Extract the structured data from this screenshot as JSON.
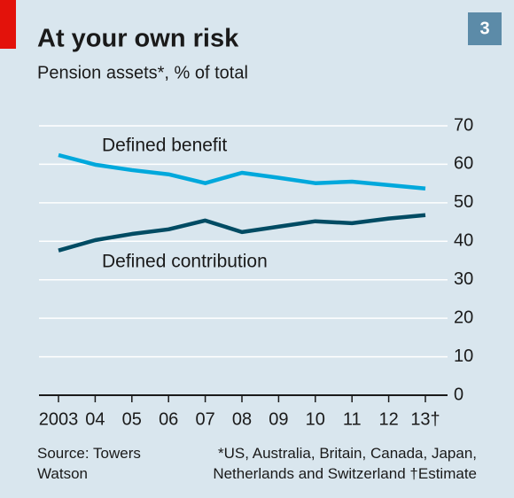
{
  "chart_data": {
    "type": "line",
    "title": "At your own risk",
    "subtitle": "Pension assets*, % of total",
    "badge": "3",
    "x": [
      2003,
      2004,
      2005,
      2006,
      2007,
      2008,
      2009,
      2010,
      2011,
      2012,
      2013
    ],
    "xlim": [
      2003,
      2013
    ],
    "xticks": [
      {
        "value": 2003,
        "label": "2003"
      },
      {
        "value": 2004,
        "label": "04"
      },
      {
        "value": 2005,
        "label": "05"
      },
      {
        "value": 2006,
        "label": "06"
      },
      {
        "value": 2007,
        "label": "07"
      },
      {
        "value": 2008,
        "label": "08"
      },
      {
        "value": 2009,
        "label": "09"
      },
      {
        "value": 2010,
        "label": "10"
      },
      {
        "value": 2011,
        "label": "11"
      },
      {
        "value": 2012,
        "label": "12"
      },
      {
        "value": 2013,
        "label": "13†"
      }
    ],
    "ylim": [
      0,
      70
    ],
    "yticks": [
      0,
      10,
      20,
      30,
      40,
      50,
      60,
      70
    ],
    "grid": true,
    "series": [
      {
        "name": "Defined benefit",
        "color": "#00a8dc",
        "values": [
          62.4,
          59.9,
          58.5,
          57.4,
          55.1,
          57.8,
          56.5,
          55.1,
          55.5,
          54.6,
          53.7
        ]
      },
      {
        "name": "Defined contribution",
        "color": "#004b63",
        "values": [
          37.6,
          40.3,
          41.9,
          43.1,
          45.4,
          42.4,
          43.8,
          45.2,
          44.7,
          45.9,
          46.8
        ]
      }
    ],
    "source": "Source: Towers Watson",
    "note": "*US, Australia, Britain, Canada, Japan, Netherlands and Switzerland",
    "estimate_note": "†Estimate"
  }
}
